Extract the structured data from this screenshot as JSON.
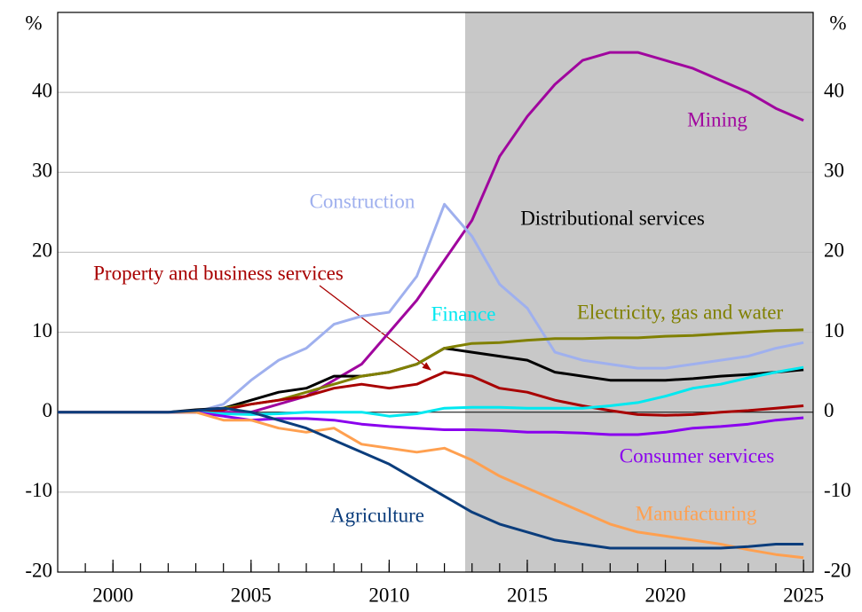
{
  "chart_data": {
    "type": "line",
    "y_unit": "%",
    "x": [
      1998,
      1999,
      2000,
      2001,
      2002,
      2003,
      2004,
      2005,
      2006,
      2007,
      2008,
      2009,
      2010,
      2011,
      2012,
      2013,
      2014,
      2015,
      2016,
      2017,
      2018,
      2019,
      2020,
      2021,
      2022,
      2023,
      2024,
      2025
    ],
    "series": [
      {
        "name": "Mining",
        "color": "#a0069e",
        "values": [
          0,
          0,
          0,
          0,
          0,
          0,
          0,
          0,
          1,
          2,
          4,
          6,
          10,
          14,
          19,
          24,
          32,
          37,
          41,
          44,
          45,
          45,
          44,
          43,
          41.5,
          40,
          38,
          36.5
        ]
      },
      {
        "name": "Construction",
        "color": "#9fb0ee",
        "values": [
          0,
          0,
          0,
          0,
          0,
          0,
          1,
          4,
          6.5,
          8,
          11,
          12,
          12.5,
          17,
          26,
          22,
          16,
          13,
          7.5,
          6.5,
          6,
          5.5,
          5.5,
          6,
          6.5,
          7,
          8,
          8.7
        ]
      },
      {
        "name": "Distributional services",
        "color": "#000000",
        "values": [
          0,
          0,
          0,
          0,
          0,
          0.3,
          0.5,
          1.5,
          2.5,
          3,
          4.5,
          4.5,
          5,
          6,
          8,
          7.5,
          7,
          6.5,
          5,
          4.5,
          4,
          4,
          4,
          4.2,
          4.5,
          4.7,
          5,
          5.3
        ]
      },
      {
        "name": "Electricity, gas and water",
        "color": "#808000",
        "values": [
          0,
          0,
          0,
          0,
          0,
          0,
          0.5,
          1,
          1.5,
          2.5,
          3.5,
          4.5,
          5,
          6,
          8,
          8.6,
          8.7,
          9,
          9.2,
          9.2,
          9.3,
          9.3,
          9.5,
          9.6,
          9.8,
          10,
          10.2,
          10.3
        ]
      },
      {
        "name": "Property and business services",
        "color": "#a80000",
        "values": [
          0,
          0,
          0,
          0,
          0,
          0,
          0.3,
          1,
          1.5,
          2,
          3,
          3.5,
          3,
          3.5,
          5,
          4.5,
          3,
          2.5,
          1.5,
          0.8,
          0.2,
          -0.3,
          -0.4,
          -0.3,
          0,
          0.2,
          0.5,
          0.8
        ]
      },
      {
        "name": "Finance",
        "color": "#00e8f0",
        "values": [
          0,
          0,
          0,
          0,
          0,
          0,
          -0.2,
          -0.3,
          -0.2,
          0,
          0,
          0,
          -0.5,
          -0.2,
          0.5,
          0.6,
          0.6,
          0.5,
          0.5,
          0.5,
          0.8,
          1.2,
          2,
          3,
          3.5,
          4.3,
          5,
          5.6
        ]
      },
      {
        "name": "Consumer services",
        "color": "#8a00ee",
        "values": [
          0,
          0,
          0,
          0,
          0,
          0,
          -0.5,
          -1,
          -0.8,
          -0.8,
          -1,
          -1.5,
          -1.8,
          -2,
          -2.2,
          -2.2,
          -2.3,
          -2.5,
          -2.5,
          -2.6,
          -2.8,
          -2.8,
          -2.5,
          -2,
          -1.8,
          -1.5,
          -1,
          -0.7
        ]
      },
      {
        "name": "Manufacturing",
        "color": "#ffa050",
        "values": [
          0,
          0,
          0,
          0,
          0,
          0,
          -1,
          -1,
          -2,
          -2.5,
          -2,
          -4,
          -4.5,
          -5,
          -4.5,
          -6,
          -8,
          -9.5,
          -11,
          -12.5,
          -14,
          -15,
          -15.5,
          -16,
          -16.5,
          -17.2,
          -17.8,
          -18.2
        ]
      },
      {
        "name": "Agriculture",
        "color": "#0b3d7c",
        "values": [
          0,
          0,
          0,
          0,
          0,
          0.2,
          0.5,
          0,
          -1,
          -2,
          -3.5,
          -5,
          -6.5,
          -8.5,
          -10.5,
          -12.5,
          -14,
          -15,
          -16,
          -16.5,
          -17,
          -17,
          -17,
          -17,
          -17,
          -16.8,
          -16.5,
          -16.5
        ]
      }
    ],
    "xlim": [
      1998,
      2025.35
    ],
    "xticks": [
      2000,
      2005,
      2010,
      2015,
      2020,
      2025
    ],
    "xminor_ticks": [
      1999,
      2000,
      2001,
      2002,
      2003,
      2004,
      2005,
      2006,
      2007,
      2008,
      2009,
      2010,
      2011,
      2012,
      2013,
      2014,
      2015,
      2016,
      2017,
      2018,
      2019,
      2020,
      2021,
      2022,
      2023,
      2024,
      2025
    ],
    "ylim": [
      -20,
      50
    ],
    "yticks": [
      -20,
      -10,
      0,
      10,
      20,
      30,
      40
    ],
    "grid": true,
    "shaded_region": [
      2012.75,
      2025.35
    ]
  }
}
